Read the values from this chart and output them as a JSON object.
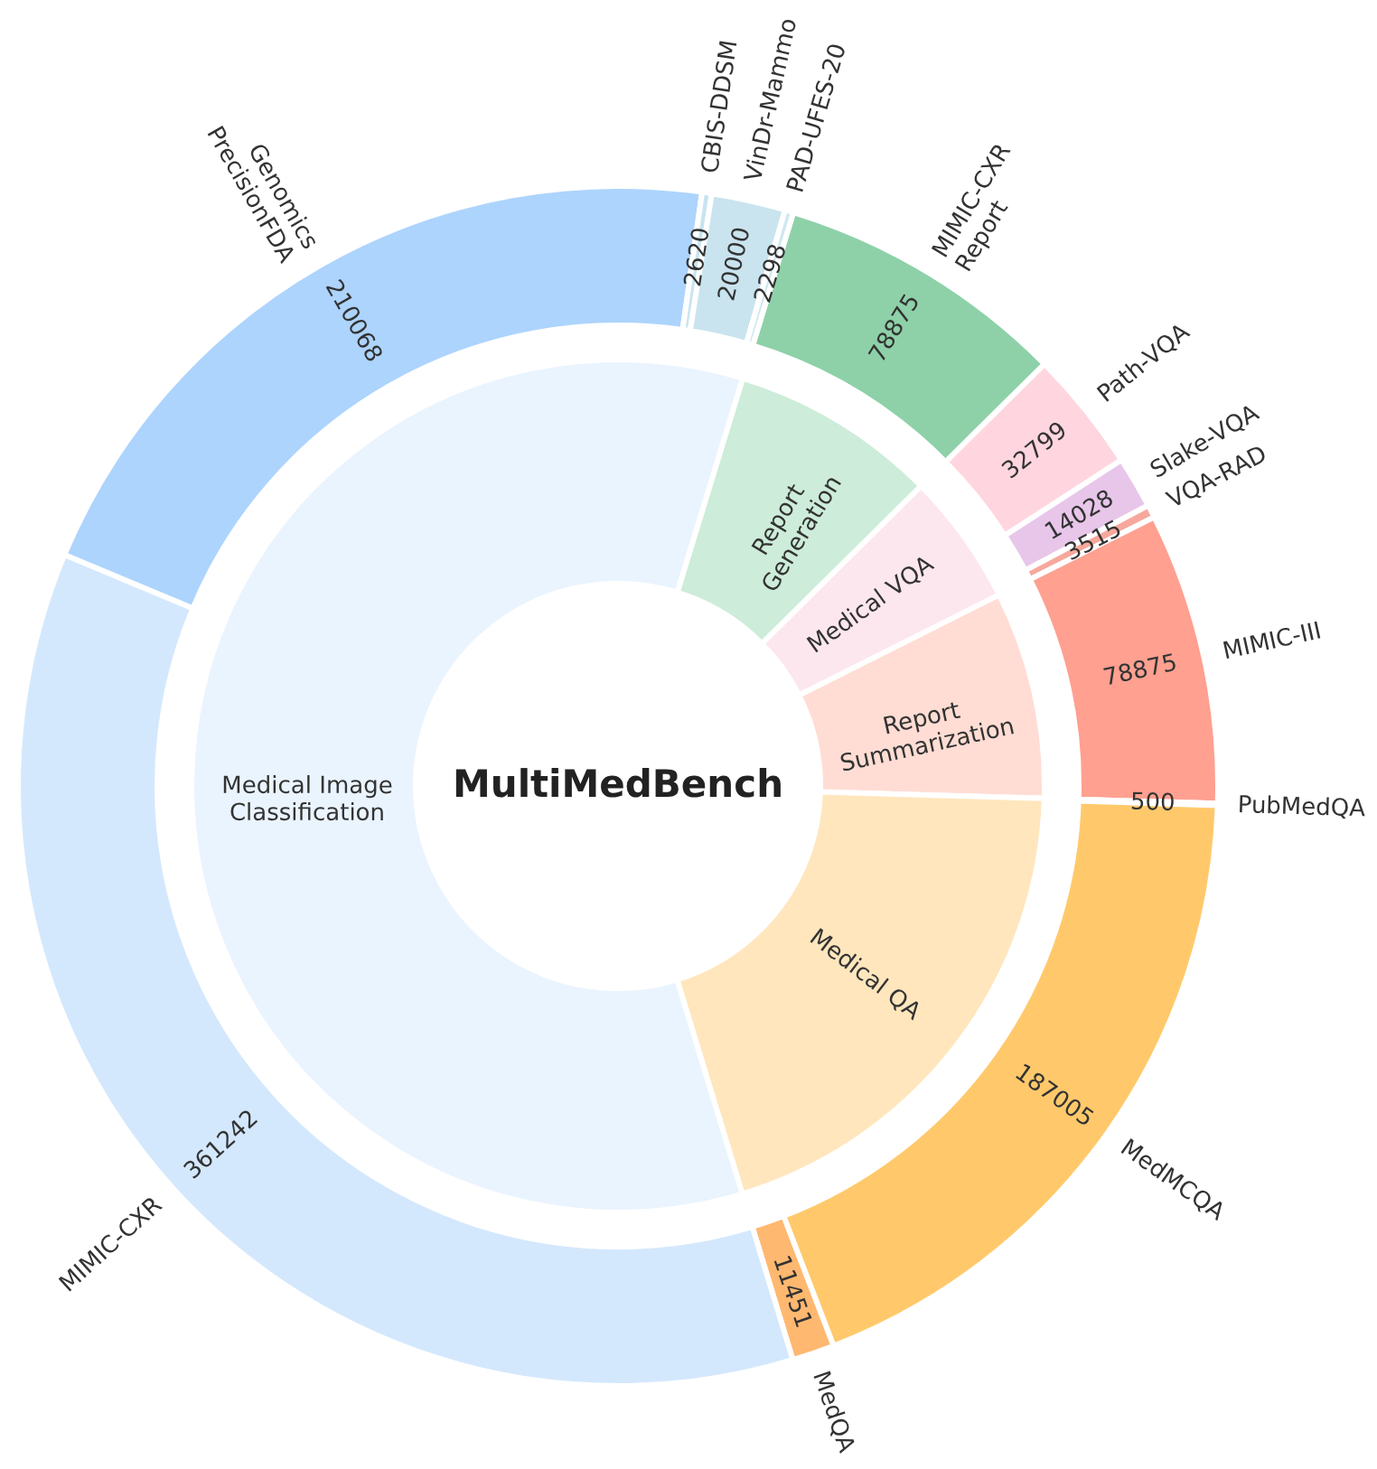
{
  "chart_data": [
    {
      "type": "donut",
      "title": "MultiMedBench",
      "categories": [
        "Report Generation",
        "Medical VQA",
        "Report Summarization",
        "Medical QA",
        "Medical Image Classification"
      ],
      "values": [
        7.86,
        5.02,
        7.86,
        19.83,
        59.43
      ],
      "colors": [
        "#cdecd9",
        "#fde7ee",
        "#ffddd4",
        "#ffe6bd",
        "#eaf4fe"
      ]
    },
    {
      "type": "donut",
      "categories": [
        "MIMIC-CXR Report",
        "Path-VQA",
        "Slake-VQA",
        "VQA-RAD",
        "MIMIC-III",
        "PubMedQA",
        "MedMCQA",
        "MedQA",
        "MIMIC-CXR",
        "Genomics PrecisionFDA",
        "CBIS-DDSM",
        "VinDr-Mammo",
        "PAD-UFES-20"
      ],
      "values": [
        78875,
        32799,
        14028,
        3515,
        78875,
        500,
        187005,
        11451,
        361242,
        210068,
        2620,
        20000,
        2298
      ],
      "colors": [
        "#8ed1a8",
        "#ffd6e0",
        "#e8c6ea",
        "#f7a89c",
        "#ffa090",
        "#ffc870",
        "#ffc96b",
        "#ffb870",
        "#d4e8fd",
        "#add4fd",
        "#c8e4f0",
        "#c9e4ee",
        "#d0e8f0"
      ],
      "data_labels": true
    }
  ]
}
